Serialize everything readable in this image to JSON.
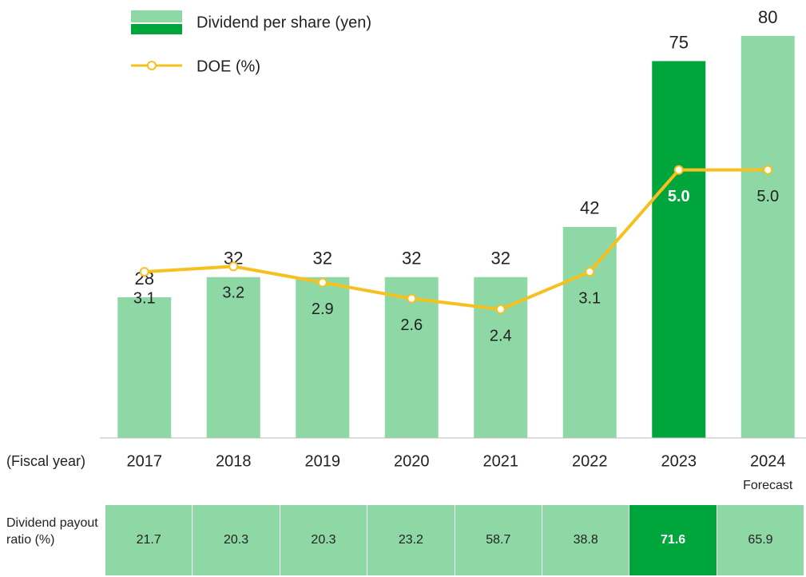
{
  "chart_data": {
    "type": "bar",
    "x_label": "(Fiscal year)",
    "categories": [
      "2017",
      "2018",
      "2019",
      "2020",
      "2021",
      "2022",
      "2023",
      "2024"
    ],
    "category_notes": [
      null,
      null,
      null,
      null,
      null,
      null,
      null,
      "Forecast"
    ],
    "series": [
      {
        "name": "Dividend per share (yen)",
        "type": "bar",
        "colors": [
          "#8ed8a6",
          "#8ed8a6",
          "#8ed8a6",
          "#8ed8a6",
          "#8ed8a6",
          "#8ed8a6",
          "#00a63c",
          "#8ed8a6"
        ],
        "values": [
          28,
          32,
          32,
          32,
          32,
          42,
          75,
          80
        ]
      },
      {
        "name": "DOE (%)",
        "type": "line",
        "axis": "y2",
        "color": "#f6c11f",
        "values": [
          3.1,
          3.2,
          2.9,
          2.6,
          2.4,
          3.1,
          5.0,
          5.0
        ],
        "value_labels": [
          "3.1",
          "3.2",
          "2.9",
          "2.6",
          "2.4",
          "3.1",
          "5.0",
          "5.0"
        ]
      }
    ],
    "ylim": [
      0,
      80
    ],
    "y2lim": [
      0,
      7.5
    ],
    "payout_ratio": {
      "label": "Dividend payout ratio (%)",
      "values": [
        21.7,
        20.3,
        20.3,
        23.2,
        58.7,
        38.8,
        71.6,
        65.9
      ]
    }
  }
}
